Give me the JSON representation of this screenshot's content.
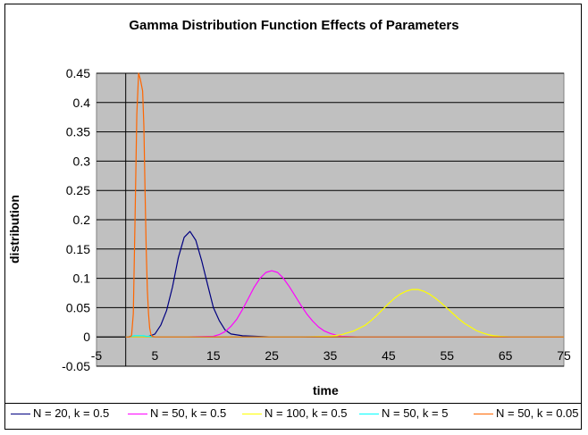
{
  "chart_data": {
    "type": "line",
    "title": "Gamma Distribution Function Effects of Parameters",
    "xlabel": "time",
    "ylabel": "distribution",
    "xlim": [
      -5,
      75
    ],
    "ylim": [
      -0.05,
      0.45
    ],
    "x_ticks": [
      "-5",
      "5",
      "15",
      "25",
      "35",
      "45",
      "55",
      "65",
      "75"
    ],
    "x_tick_values": [
      -5,
      5,
      15,
      25,
      35,
      45,
      55,
      65,
      75
    ],
    "y_ticks": [
      "-0.05",
      "0",
      "0.05",
      "0.1",
      "0.15",
      "0.2",
      "0.25",
      "0.3",
      "0.35",
      "0.4",
      "0.45"
    ],
    "y_tick_values": [
      -0.05,
      0,
      0.05,
      0.1,
      0.15,
      0.2,
      0.25,
      0.3,
      0.35,
      0.4,
      0.45
    ],
    "grid": "horizontal",
    "plot_background": "#c0c0c0",
    "legend_position": "bottom",
    "series": [
      {
        "name": "N = 20, k = 0.5",
        "color": "#000080",
        "x": [
          0,
          1,
          2,
          3,
          4,
          5,
          6,
          7,
          8,
          9,
          10,
          11,
          12,
          13,
          14,
          15,
          16,
          17,
          18,
          20,
          25,
          30,
          40,
          50,
          60,
          70,
          75
        ],
        "y": [
          0,
          0,
          0,
          0,
          0.001,
          0.005,
          0.02,
          0.045,
          0.085,
          0.135,
          0.17,
          0.18,
          0.165,
          0.13,
          0.09,
          0.05,
          0.028,
          0.012,
          0.005,
          0.002,
          0,
          0,
          0,
          0,
          0,
          0,
          0
        ]
      },
      {
        "name": "N = 50, k = 0.5",
        "color": "#ff00ff",
        "x": [
          0,
          10,
          15,
          16,
          17,
          18,
          19,
          20,
          21,
          22,
          23,
          24,
          25,
          26,
          27,
          28,
          29,
          30,
          31,
          32,
          33,
          34,
          35,
          36,
          37,
          40,
          50,
          60,
          70,
          75
        ],
        "y": [
          0,
          0,
          0.001,
          0.004,
          0.009,
          0.018,
          0.03,
          0.047,
          0.066,
          0.085,
          0.1,
          0.11,
          0.113,
          0.11,
          0.1,
          0.086,
          0.07,
          0.054,
          0.039,
          0.027,
          0.017,
          0.01,
          0.006,
          0.003,
          0.001,
          0,
          0,
          0,
          0,
          0
        ]
      },
      {
        "name": "N = 100, k = 0.5",
        "color": "#ffff00",
        "x": [
          0,
          30,
          35,
          37,
          39,
          41,
          42,
          43,
          44,
          45,
          46,
          47,
          48,
          49,
          50,
          51,
          52,
          53,
          54,
          55,
          56,
          57,
          58,
          59,
          60,
          61,
          62,
          63,
          64,
          65,
          66,
          67,
          70,
          75
        ],
        "y": [
          0,
          0,
          0.001,
          0.004,
          0.01,
          0.02,
          0.028,
          0.037,
          0.047,
          0.057,
          0.066,
          0.073,
          0.078,
          0.081,
          0.081,
          0.078,
          0.073,
          0.066,
          0.058,
          0.049,
          0.04,
          0.031,
          0.023,
          0.017,
          0.011,
          0.007,
          0.004,
          0.002,
          0.001,
          0.0005,
          0,
          0,
          0,
          0
        ]
      },
      {
        "name": "N = 50, k = 5",
        "color": "#00ffff",
        "x": [
          0,
          0.5,
          1,
          1.5,
          2,
          2.5,
          3,
          3.5,
          4,
          4.5,
          5,
          10,
          20,
          40,
          60,
          75
        ],
        "y": [
          0,
          0.0005,
          0.001,
          0.002,
          0.002,
          0.002,
          0.002,
          0.001,
          0.001,
          0.0005,
          0,
          0,
          0,
          0,
          0,
          0
        ]
      },
      {
        "name": "N = 50, k = 0.05",
        "color": "#ff6600",
        "x": [
          0,
          0.5,
          1,
          1.3,
          1.6,
          1.9,
          2.2,
          2.5,
          2.7,
          2.9,
          3.1,
          3.3,
          3.5,
          3.7,
          3.9,
          4.1,
          4.3,
          4.5,
          5,
          6,
          10,
          20,
          40,
          60,
          75
        ],
        "y": [
          0,
          0,
          0.002,
          0.04,
          0.2,
          0.38,
          0.45,
          0.44,
          0.43,
          0.42,
          0.36,
          0.25,
          0.15,
          0.08,
          0.04,
          0.015,
          0.005,
          0.001,
          0,
          0,
          0,
          0,
          0,
          0,
          0
        ]
      }
    ]
  }
}
